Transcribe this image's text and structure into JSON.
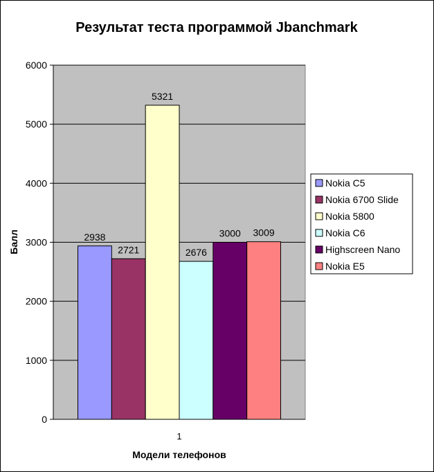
{
  "chart_data": {
    "type": "bar",
    "title": "Результат теста программой Jbanchmark",
    "xlabel": "Модели телефонов",
    "ylabel": "Балл",
    "ylim": [
      0,
      6000
    ],
    "y_ticks": [
      "0",
      "1000",
      "2000",
      "3000",
      "4000",
      "5000",
      "6000"
    ],
    "categories": [
      "1"
    ],
    "grid": true,
    "legend_position": "right",
    "plot_background": "#c0c0c0",
    "series": [
      {
        "name": "Nokia C5",
        "values": [
          2938
        ],
        "color": "#9999ff",
        "label": "2938"
      },
      {
        "name": "Nokia 6700 Slide",
        "values": [
          2721
        ],
        "color": "#993366",
        "label": "2721"
      },
      {
        "name": "Nokia 5800",
        "values": [
          5321
        ],
        "color": "#ffffcc",
        "label": "5321"
      },
      {
        "name": "Nokia C6",
        "values": [
          2676
        ],
        "color": "#ccffff",
        "label": "2676"
      },
      {
        "name": "Highscreen Nano",
        "values": [
          3000
        ],
        "color": "#660066",
        "label": "3000"
      },
      {
        "name": "Nokia E5",
        "values": [
          3009
        ],
        "color": "#ff8080",
        "label": "3009"
      }
    ]
  }
}
